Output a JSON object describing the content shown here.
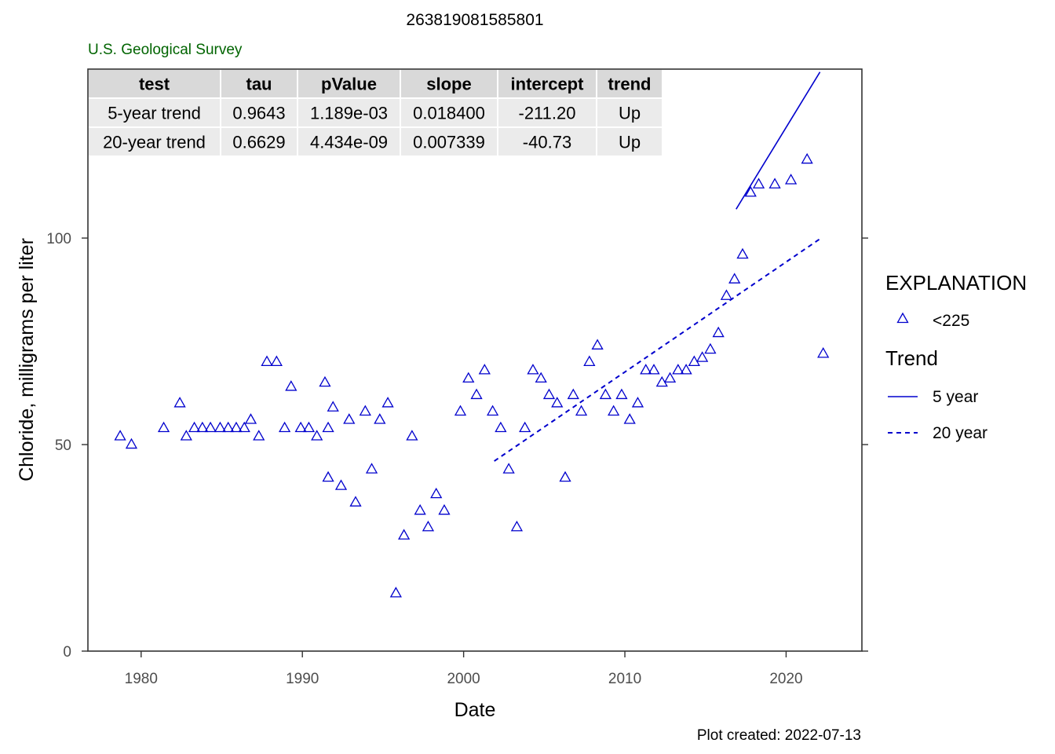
{
  "title": "263819081585801",
  "agency": "U.S. Geological Survey",
  "footer": "Plot created: 2022-07-13",
  "stats_table": {
    "headers": [
      "test",
      "tau",
      "pValue",
      "slope",
      "intercept",
      "trend"
    ],
    "rows": [
      [
        "5-year trend",
        "0.9643",
        "1.189e-03",
        "0.018400",
        "-211.20",
        "Up"
      ],
      [
        "20-year trend",
        "0.6629",
        "4.434e-09",
        "0.007339",
        "-40.73",
        "Up"
      ]
    ]
  },
  "legend": {
    "title": "EXPLANATION",
    "point_label": "<225",
    "trend_title": "Trend",
    "line_5yr": "5 year",
    "line_20yr": "20 year"
  },
  "colors": {
    "series": "#0000CD",
    "agency": "#006400"
  },
  "chart_data": {
    "type": "scatter",
    "xlabel": "Date",
    "ylabel": "Chloride, milligrams per liter",
    "xlim": [
      1976.7,
      2024.7
    ],
    "ylim": [
      0,
      140.9
    ],
    "x_ticks": [
      1980,
      1990,
      2000,
      2010,
      2020
    ],
    "y_ticks": [
      0,
      50,
      100
    ],
    "grid": false,
    "legend_position": "right",
    "series": [
      {
        "name": "<225",
        "marker": "triangle",
        "points": [
          [
            1978.7,
            52
          ],
          [
            1979.4,
            50
          ],
          [
            1981.4,
            54
          ],
          [
            1982.4,
            60
          ],
          [
            1982.8,
            52
          ],
          [
            1983.3,
            54
          ],
          [
            1983.8,
            54
          ],
          [
            1984.3,
            54
          ],
          [
            1984.9,
            54
          ],
          [
            1985.4,
            54
          ],
          [
            1985.9,
            54
          ],
          [
            1986.4,
            54
          ],
          [
            1986.8,
            56
          ],
          [
            1987.3,
            52
          ],
          [
            1987.8,
            70
          ],
          [
            1988.4,
            70
          ],
          [
            1988.9,
            54
          ],
          [
            1989.3,
            64
          ],
          [
            1989.9,
            54
          ],
          [
            1990.4,
            54
          ],
          [
            1990.9,
            52
          ],
          [
            1991.4,
            65
          ],
          [
            1991.6,
            42
          ],
          [
            1991.6,
            54
          ],
          [
            1991.9,
            59
          ],
          [
            1992.4,
            40
          ],
          [
            1992.9,
            56
          ],
          [
            1993.3,
            36
          ],
          [
            1993.9,
            58
          ],
          [
            1994.3,
            44
          ],
          [
            1994.8,
            56
          ],
          [
            1995.3,
            60
          ],
          [
            1995.8,
            14
          ],
          [
            1996.3,
            28
          ],
          [
            1996.8,
            52
          ],
          [
            1997.3,
            34
          ],
          [
            1997.8,
            30
          ],
          [
            1998.3,
            38
          ],
          [
            1998.8,
            34
          ],
          [
            1999.8,
            58
          ],
          [
            2000.3,
            66
          ],
          [
            2000.8,
            62
          ],
          [
            2001.3,
            68
          ],
          [
            2001.8,
            58
          ],
          [
            2002.3,
            54
          ],
          [
            2002.8,
            44
          ],
          [
            2003.3,
            30
          ],
          [
            2003.8,
            54
          ],
          [
            2004.3,
            68
          ],
          [
            2004.8,
            66
          ],
          [
            2005.3,
            62
          ],
          [
            2005.8,
            60
          ],
          [
            2006.3,
            42
          ],
          [
            2006.8,
            62
          ],
          [
            2007.3,
            58
          ],
          [
            2007.8,
            70
          ],
          [
            2008.3,
            74
          ],
          [
            2008.8,
            62
          ],
          [
            2009.3,
            58
          ],
          [
            2009.8,
            62
          ],
          [
            2010.3,
            56
          ],
          [
            2010.8,
            60
          ],
          [
            2011.3,
            68
          ],
          [
            2011.8,
            68
          ],
          [
            2012.3,
            65
          ],
          [
            2012.8,
            66
          ],
          [
            2013.3,
            68
          ],
          [
            2013.8,
            68
          ],
          [
            2014.3,
            70
          ],
          [
            2014.8,
            71
          ],
          [
            2015.3,
            73
          ],
          [
            2015.8,
            77
          ],
          [
            2016.3,
            86
          ],
          [
            2016.8,
            90
          ],
          [
            2017.3,
            96
          ],
          [
            2017.8,
            111
          ],
          [
            2018.3,
            113
          ],
          [
            2019.3,
            113
          ],
          [
            2020.3,
            114
          ],
          [
            2021.3,
            119
          ],
          [
            2022.3,
            72
          ]
        ]
      }
    ],
    "trend_lines": [
      {
        "name": "5 year",
        "style": "solid",
        "x": [
          2016.9,
          2022.1
        ],
        "y": [
          107,
          140.2
        ]
      },
      {
        "name": "20 year",
        "style": "dashed",
        "x": [
          2001.9,
          2022.1
        ],
        "y": [
          46,
          99.8
        ]
      }
    ]
  }
}
